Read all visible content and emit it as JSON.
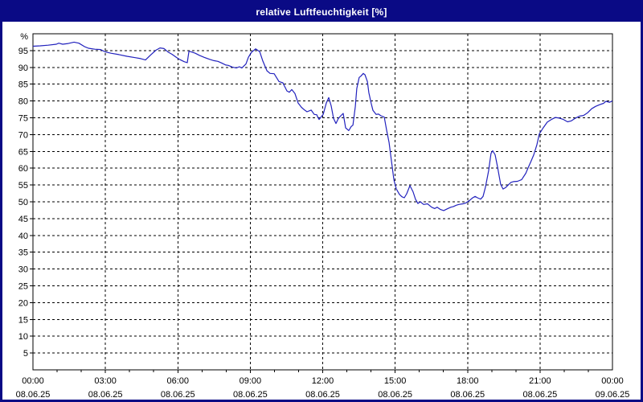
{
  "window": {
    "title": "relative Luftfeuchtigkeit [%]",
    "title_bg": "#0a0a85",
    "title_color": "#ffffff",
    "border_color": "#0a0a85"
  },
  "chart_data": {
    "type": "line",
    "title": "relative Luftfeuchtigkeit [%]",
    "ylabel": "%",
    "xlabel": "",
    "ylim": [
      0,
      100
    ],
    "xlim_hours": [
      0,
      24
    ],
    "grid": "dashed",
    "legend": "none",
    "plot_bg": "#ffffff",
    "frame_color": "#000000",
    "grid_color": "#000000",
    "line_color": "#2222bd",
    "tick_text_color": "#000000",
    "y_ticks": [
      5,
      10,
      15,
      20,
      25,
      30,
      35,
      40,
      45,
      50,
      55,
      60,
      65,
      70,
      75,
      80,
      85,
      90,
      95
    ],
    "x_ticks": [
      {
        "hour": 0,
        "time": "00:00",
        "date": "08.06.25"
      },
      {
        "hour": 3,
        "time": "03:00",
        "date": "08.06.25"
      },
      {
        "hour": 6,
        "time": "06:00",
        "date": "08.06.25"
      },
      {
        "hour": 9,
        "time": "09:00",
        "date": "08.06.25"
      },
      {
        "hour": 12,
        "time": "12:00",
        "date": "08.06.25"
      },
      {
        "hour": 15,
        "time": "15:00",
        "date": "08.06.25"
      },
      {
        "hour": 18,
        "time": "18:00",
        "date": "08.06.25"
      },
      {
        "hour": 21,
        "time": "21:00",
        "date": "08.06.25"
      },
      {
        "hour": 24,
        "time": "00:00",
        "date": "09.06.25"
      }
    ],
    "series": [
      {
        "name": "relative Luftfeuchtigkeit",
        "points": [
          [
            0,
            96.3
          ],
          [
            0.3,
            96.4
          ],
          [
            0.63,
            96.6
          ],
          [
            0.97,
            96.9
          ],
          [
            1.07,
            97.2
          ],
          [
            1.23,
            96.9
          ],
          [
            1.46,
            97.1
          ],
          [
            1.7,
            97.5
          ],
          [
            1.9,
            97.2
          ],
          [
            2.13,
            96.2
          ],
          [
            2.3,
            95.7
          ],
          [
            2.56,
            95.4
          ],
          [
            2.8,
            95.3
          ],
          [
            3,
            94.6
          ],
          [
            3.23,
            94.2
          ],
          [
            3.56,
            93.8
          ],
          [
            3.89,
            93.3
          ],
          [
            4.23,
            92.9
          ],
          [
            4.46,
            92.6
          ],
          [
            4.66,
            92.2
          ],
          [
            4.89,
            93.8
          ],
          [
            5.09,
            95.1
          ],
          [
            5.26,
            95.8
          ],
          [
            5.43,
            95.6
          ],
          [
            5.59,
            94.6
          ],
          [
            5.76,
            93.9
          ],
          [
            5.96,
            92.9
          ],
          [
            6.09,
            92.3
          ],
          [
            6.26,
            91.7
          ],
          [
            6.39,
            91.4
          ],
          [
            6.46,
            94.8
          ],
          [
            6.56,
            94.6
          ],
          [
            6.72,
            94.2
          ],
          [
            6.89,
            93.6
          ],
          [
            7.09,
            93
          ],
          [
            7.32,
            92.4
          ],
          [
            7.49,
            92
          ],
          [
            7.66,
            91.8
          ],
          [
            7.82,
            91.3
          ],
          [
            7.99,
            90.7
          ],
          [
            8.09,
            90.6
          ],
          [
            8.26,
            90.1
          ],
          [
            8.42,
            89.8
          ],
          [
            8.55,
            90.2
          ],
          [
            8.65,
            89.8
          ],
          [
            8.82,
            91
          ],
          [
            8.92,
            93
          ],
          [
            9.05,
            94.5
          ],
          [
            9.22,
            95.5
          ],
          [
            9.39,
            94.7
          ],
          [
            9.52,
            91.9
          ],
          [
            9.69,
            89
          ],
          [
            9.82,
            88.2
          ],
          [
            9.99,
            88.1
          ],
          [
            10.19,
            85.8
          ],
          [
            10.35,
            85.4
          ],
          [
            10.52,
            83
          ],
          [
            10.62,
            82.6
          ],
          [
            10.72,
            83.4
          ],
          [
            10.85,
            82.2
          ],
          [
            10.98,
            79.4
          ],
          [
            11.12,
            78.1
          ],
          [
            11.25,
            77.3
          ],
          [
            11.35,
            76.8
          ],
          [
            11.52,
            77.3
          ],
          [
            11.65,
            76
          ],
          [
            11.75,
            75.9
          ],
          [
            11.85,
            74.5
          ],
          [
            12.02,
            76
          ],
          [
            12.15,
            79.4
          ],
          [
            12.25,
            81
          ],
          [
            12.35,
            78.6
          ],
          [
            12.45,
            74.8
          ],
          [
            12.55,
            73.3
          ],
          [
            12.65,
            74.8
          ],
          [
            12.75,
            75.6
          ],
          [
            12.85,
            76.3
          ],
          [
            12.95,
            72
          ],
          [
            13.08,
            71.2
          ],
          [
            13.18,
            72.4
          ],
          [
            13.25,
            72.8
          ],
          [
            13.35,
            78.4
          ],
          [
            13.41,
            83.7
          ],
          [
            13.51,
            87
          ],
          [
            13.58,
            87.4
          ],
          [
            13.68,
            88.2
          ],
          [
            13.75,
            87.8
          ],
          [
            13.85,
            85.8
          ],
          [
            13.91,
            82.5
          ],
          [
            14.01,
            79.2
          ],
          [
            14.08,
            77.2
          ],
          [
            14.21,
            76
          ],
          [
            14.31,
            76.1
          ],
          [
            14.41,
            75.6
          ],
          [
            14.55,
            75.2
          ],
          [
            14.65,
            71.2
          ],
          [
            14.75,
            67.6
          ],
          [
            14.85,
            62
          ],
          [
            14.95,
            56.5
          ],
          [
            15.05,
            53.8
          ],
          [
            15.18,
            52.2
          ],
          [
            15.28,
            51.5
          ],
          [
            15.38,
            51.2
          ],
          [
            15.48,
            52.4
          ],
          [
            15.61,
            54.8
          ],
          [
            15.74,
            53
          ],
          [
            15.84,
            50.8
          ],
          [
            15.94,
            49.5
          ],
          [
            16.04,
            50
          ],
          [
            16.18,
            49.2
          ],
          [
            16.34,
            49.4
          ],
          [
            16.51,
            48.4
          ],
          [
            16.64,
            48
          ],
          [
            16.74,
            48.4
          ],
          [
            16.88,
            47.7
          ],
          [
            17.01,
            47.4
          ],
          [
            17.18,
            48
          ],
          [
            17.31,
            48.4
          ],
          [
            17.41,
            48.6
          ],
          [
            17.54,
            49
          ],
          [
            17.64,
            49.2
          ],
          [
            17.81,
            49.4
          ],
          [
            17.94,
            49.7
          ],
          [
            18.08,
            50.4
          ],
          [
            18.21,
            51.2
          ],
          [
            18.31,
            51.6
          ],
          [
            18.41,
            51.2
          ],
          [
            18.54,
            50.8
          ],
          [
            18.64,
            51.6
          ],
          [
            18.74,
            54.4
          ],
          [
            18.87,
            59.2
          ],
          [
            18.97,
            64.4
          ],
          [
            19.04,
            65.2
          ],
          [
            19.14,
            64
          ],
          [
            19.24,
            60.4
          ],
          [
            19.37,
            55.2
          ],
          [
            19.47,
            53.8
          ],
          [
            19.57,
            54.2
          ],
          [
            19.71,
            55.2
          ],
          [
            19.8,
            55.8
          ],
          [
            19.9,
            56
          ],
          [
            20.07,
            56.1
          ],
          [
            20.24,
            56.6
          ],
          [
            20.41,
            58.5
          ],
          [
            20.51,
            60.2
          ],
          [
            20.61,
            61.8
          ],
          [
            20.74,
            64
          ],
          [
            20.87,
            67
          ],
          [
            20.97,
            70.2
          ],
          [
            21.14,
            72.1
          ],
          [
            21.3,
            73.7
          ],
          [
            21.47,
            74.5
          ],
          [
            21.64,
            75.1
          ],
          [
            21.8,
            74.9
          ],
          [
            21.97,
            74.5
          ],
          [
            22.14,
            73.8
          ],
          [
            22.3,
            74.1
          ],
          [
            22.47,
            74.9
          ],
          [
            22.64,
            75.5
          ],
          [
            22.8,
            75.7
          ],
          [
            22.97,
            76.5
          ],
          [
            23.14,
            77.7
          ],
          [
            23.3,
            78.4
          ],
          [
            23.47,
            78.9
          ],
          [
            23.63,
            79.3
          ],
          [
            23.73,
            79.9
          ],
          [
            23.87,
            79.6
          ],
          [
            24,
            80
          ]
        ]
      }
    ]
  }
}
